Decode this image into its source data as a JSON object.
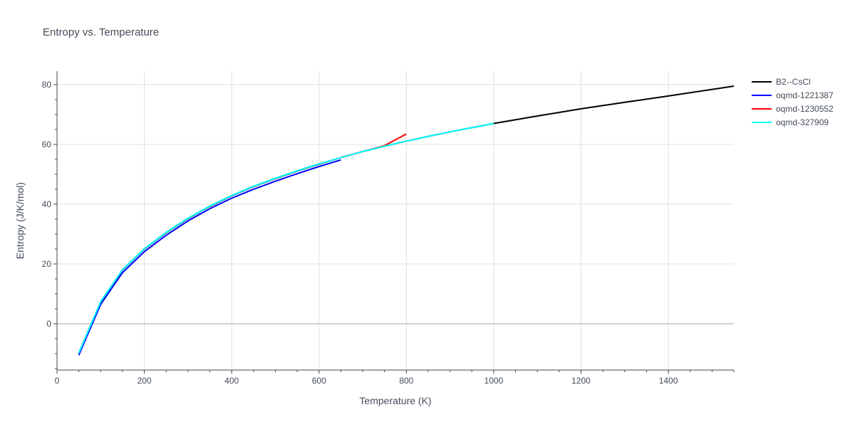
{
  "chart_data": {
    "type": "line",
    "title": "Entropy vs. Temperature",
    "xlabel": "Temperature (K)",
    "ylabel": "Entropy (J/K/mol)",
    "xlim": [
      0,
      1550
    ],
    "ylim": [
      -15.5,
      84.5
    ],
    "xticks": [
      0,
      200,
      400,
      600,
      800,
      1000,
      1200,
      1400
    ],
    "yticks": [
      0,
      20,
      40,
      60,
      80
    ],
    "grid": true,
    "legend_position": "right",
    "series": [
      {
        "name": "B2--CsCl",
        "color": "#000000",
        "x": [
          50,
          100,
          150,
          200,
          250,
          300,
          350,
          400,
          450,
          500,
          550,
          600,
          650,
          700,
          750,
          800,
          850,
          900,
          950,
          1000,
          1100,
          1200,
          1300,
          1400,
          1500,
          1550
        ],
        "y": [
          -9.8,
          7.3,
          18.0,
          25.0,
          30.5,
          35.2,
          39.3,
          42.8,
          45.9,
          48.6,
          51.1,
          53.4,
          55.6,
          57.6,
          59.4,
          61.1,
          62.7,
          64.2,
          65.6,
          67.0,
          69.5,
          71.9,
          74.1,
          76.2,
          78.4,
          79.5
        ]
      },
      {
        "name": "oqmd-1221387",
        "color": "#0000ff",
        "x": [
          50,
          100,
          150,
          200,
          250,
          300,
          350,
          400,
          450,
          500,
          550,
          600,
          650
        ],
        "y": [
          -10.5,
          6.5,
          17.1,
          24.1,
          29.6,
          34.4,
          38.5,
          42.0,
          45.0,
          47.7,
          50.2,
          52.6,
          54.8
        ]
      },
      {
        "name": "oqmd-1230552",
        "color": "#ff0000",
        "x": [
          650,
          700,
          750,
          800
        ],
        "y": [
          55.6,
          57.6,
          59.6,
          63.5
        ]
      },
      {
        "name": "oqmd-327909",
        "color": "#00ffff",
        "x": [
          50,
          100,
          150,
          200,
          250,
          300,
          350,
          400,
          450,
          500,
          550,
          600,
          650,
          700,
          750,
          800,
          850,
          900,
          950,
          1000
        ],
        "y": [
          -9.8,
          7.4,
          18.1,
          25.1,
          30.6,
          35.3,
          39.4,
          42.9,
          46.0,
          48.7,
          51.2,
          53.5,
          55.6,
          57.6,
          59.4,
          61.1,
          62.7,
          64.2,
          65.6,
          67.0
        ]
      }
    ]
  }
}
